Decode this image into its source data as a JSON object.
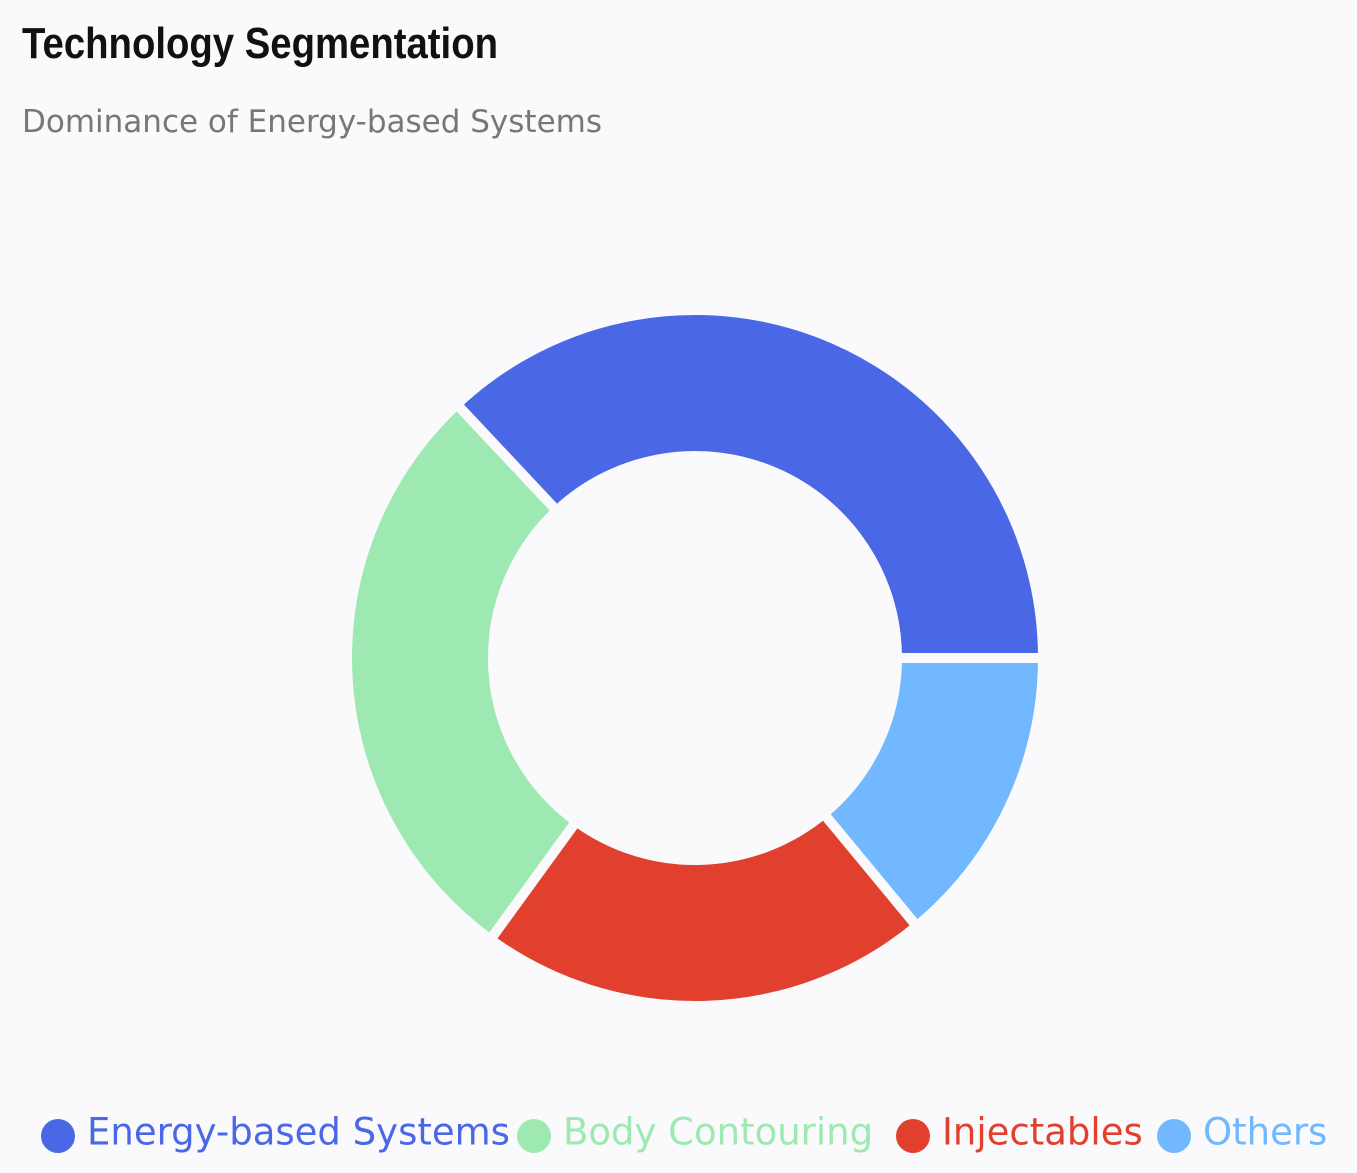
{
  "chart_data": {
    "type": "donut",
    "title": "Technology Segmentation",
    "subtitle": "Dominance of Energy-based Systems",
    "categories": [
      "Energy-based Systems",
      "Body Contouring",
      "Injectables",
      "Others"
    ],
    "values": [
      37,
      28,
      21,
      14
    ],
    "colors": [
      "#4a67e6",
      "#9de9b1",
      "#e0402d",
      "#72b8fe"
    ]
  }
}
